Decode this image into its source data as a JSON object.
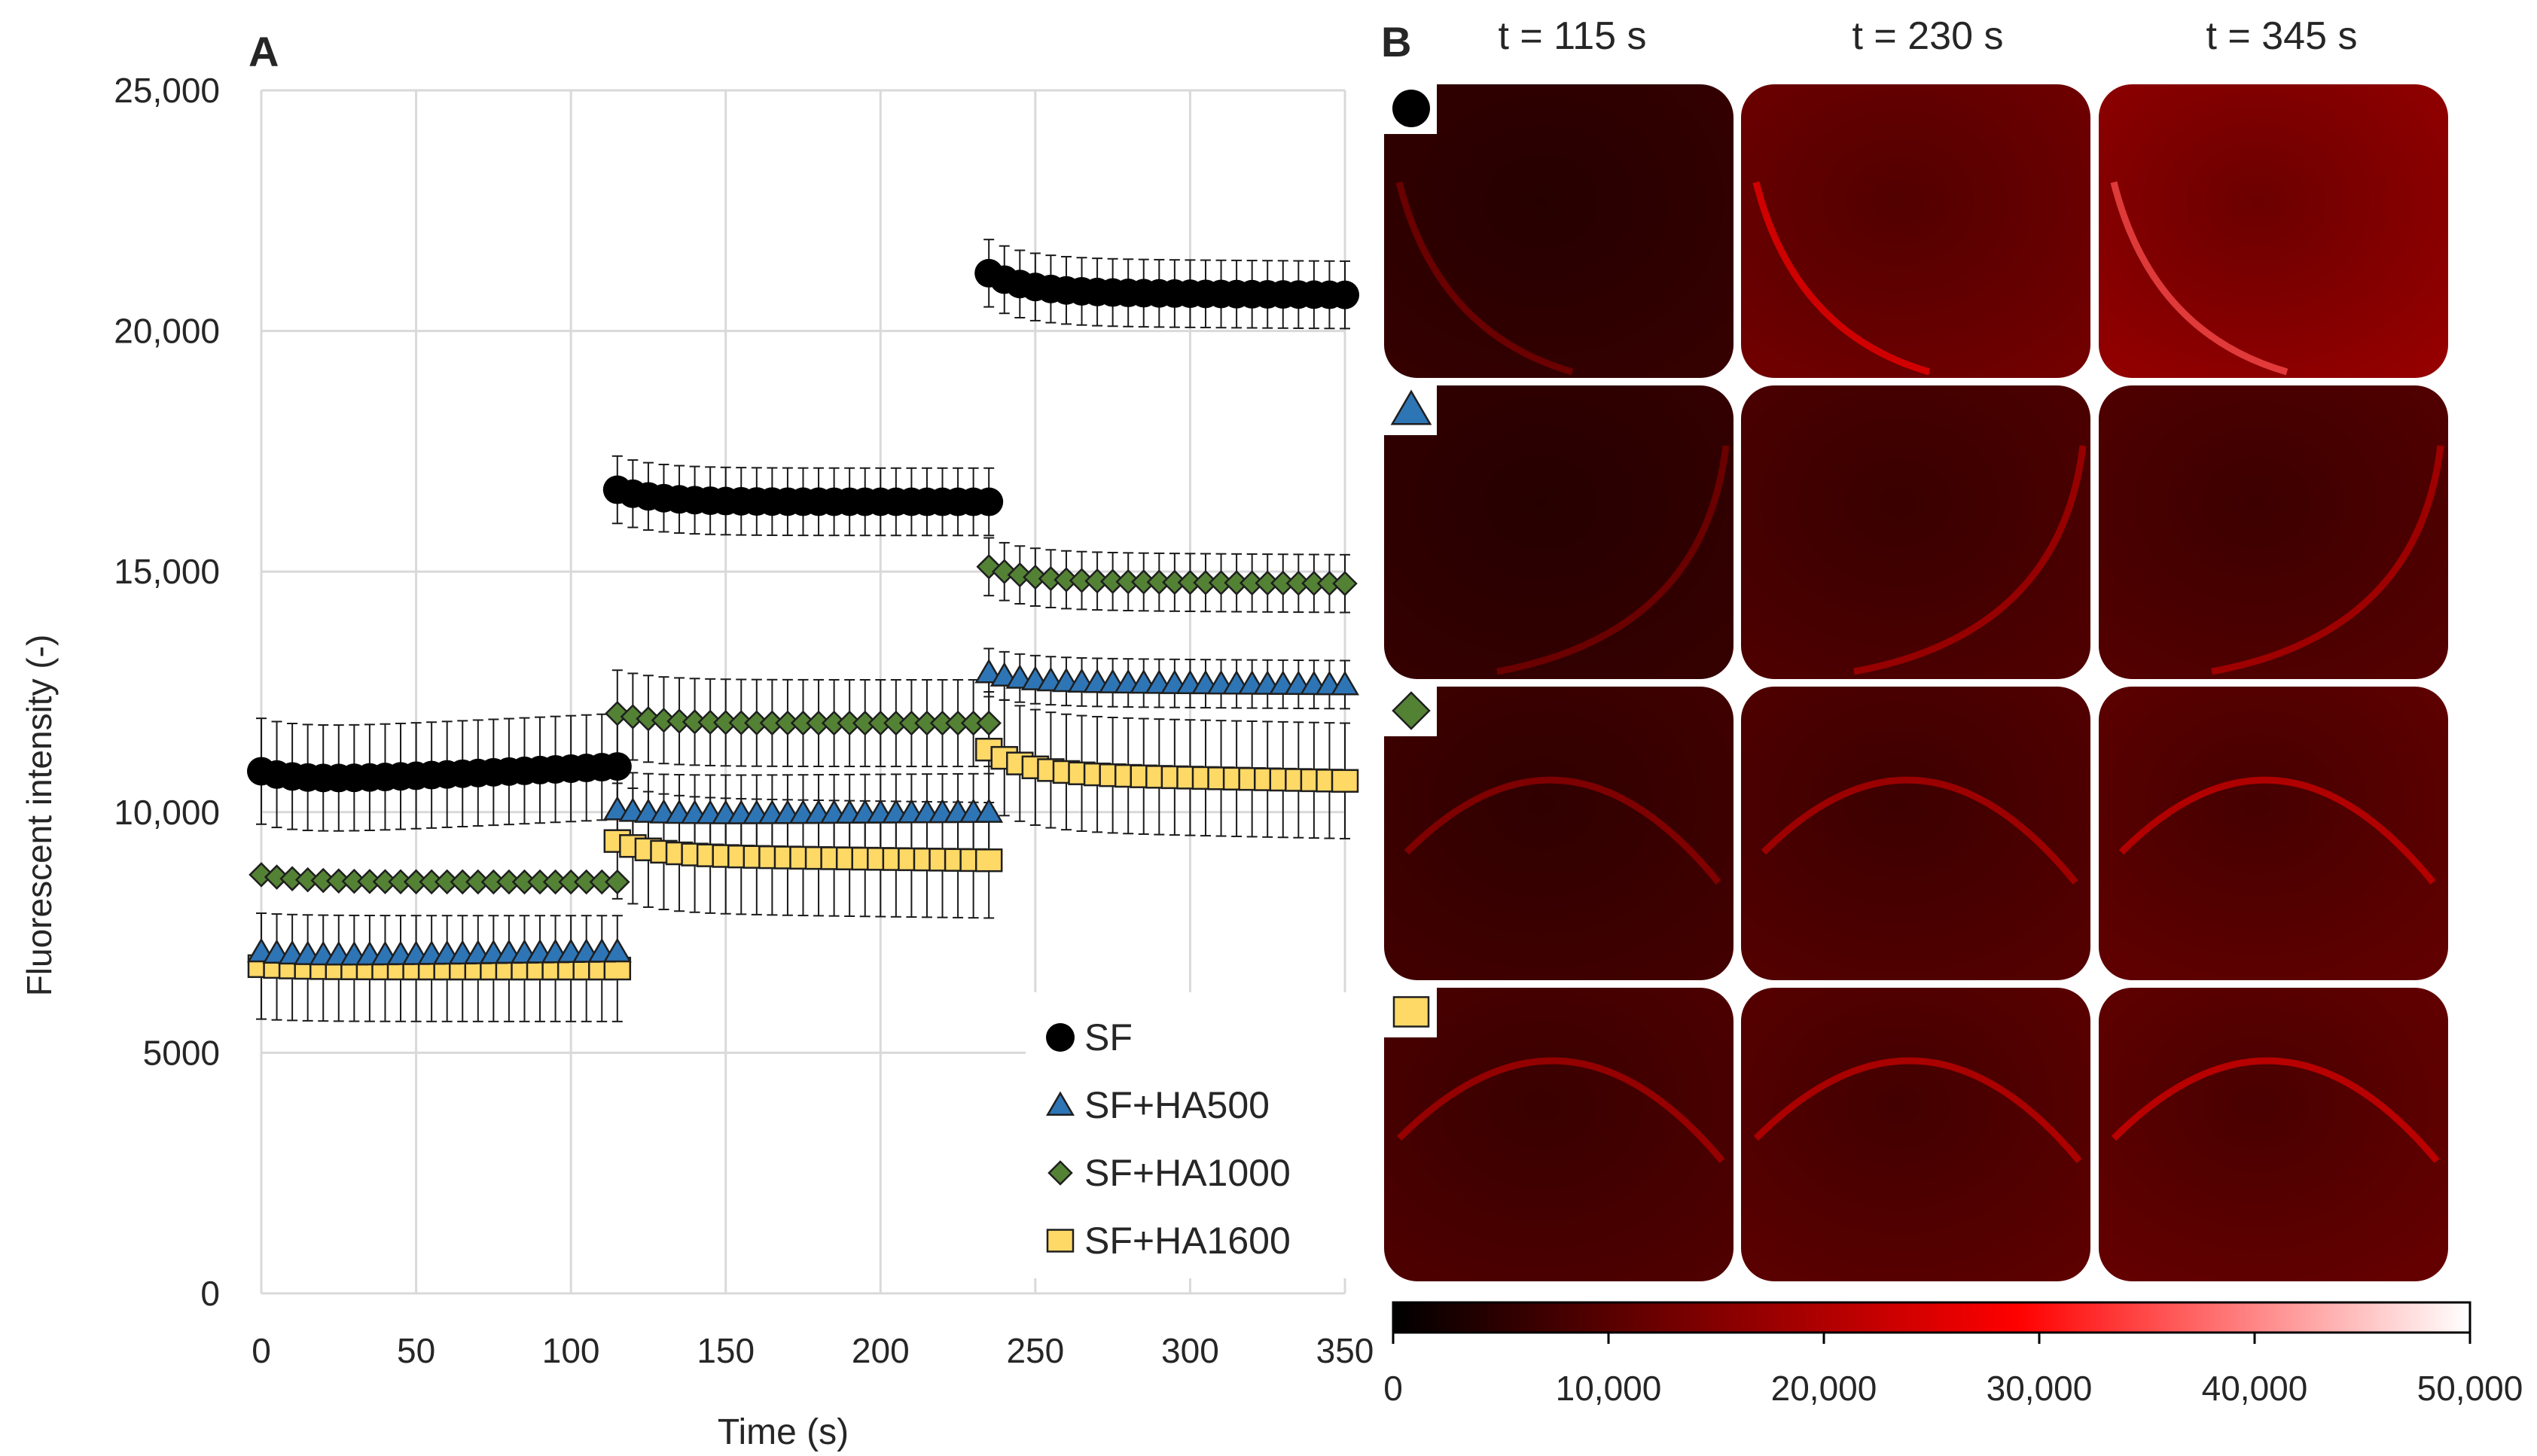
{
  "panel_a": {
    "label": "A",
    "chart_data": {
      "type": "scatter",
      "title": "",
      "xlabel": "Time (s)",
      "ylabel": "Fluorescent intensity (-)",
      "xlim": [
        0,
        350
      ],
      "ylim": [
        0,
        25000
      ],
      "xticks": [
        0,
        50,
        100,
        150,
        200,
        250,
        300,
        350
      ],
      "xtick_labels": [
        "0",
        "50",
        "100",
        "150",
        "200",
        "250",
        "300",
        "350"
      ],
      "yticks": [
        0,
        5000,
        10000,
        15000,
        20000,
        25000
      ],
      "ytick_labels": [
        "0",
        "5000",
        "10,000",
        "15,000",
        "20,000",
        "25,000"
      ],
      "grid": true,
      "legend_position": "bottom-right",
      "segments": [
        {
          "x_start": 0,
          "x_end": 115,
          "step": 5
        },
        {
          "x_start": 115,
          "x_end": 235,
          "step": 5
        },
        {
          "x_start": 235,
          "x_end": 350,
          "step": 5
        }
      ],
      "series": [
        {
          "name": "SF",
          "marker": "circle",
          "color": "#000000",
          "segments": [
            {
              "start": 10850,
              "settle": 10600,
              "end": 10950,
              "error": 1100
            },
            {
              "start": 16700,
              "settle": 16450,
              "end": 16450,
              "error": 700
            },
            {
              "start": 21200,
              "settle": 20800,
              "end": 20750,
              "error": 700
            }
          ]
        },
        {
          "name": "SF+HA500",
          "marker": "triangle",
          "color": "#2e75b6",
          "segments": [
            {
              "start": 7100,
              "settle": 7000,
              "end": 7100,
              "error": 0
            },
            {
              "start": 10050,
              "settle": 9950,
              "end": 10000,
              "error": 800
            },
            {
              "start": 12900,
              "settle": 12700,
              "end": 12650,
              "error": 500
            }
          ]
        },
        {
          "name": "SF+HA1000",
          "marker": "diamond",
          "color": "#548235",
          "segments": [
            {
              "start": 8700,
              "settle": 8550,
              "end": 8550,
              "error": 0
            },
            {
              "start": 12050,
              "settle": 11850,
              "end": 11850,
              "error": 900
            },
            {
              "start": 15100,
              "settle": 14800,
              "end": 14750,
              "error": 600
            }
          ]
        },
        {
          "name": "SF+HA1600",
          "marker": "square",
          "color": "#ffd966",
          "segments": [
            {
              "start": 6800,
              "settle": 6750,
              "end": 6750,
              "error": 1100
            },
            {
              "start": 9400,
              "settle": 9100,
              "end": 9000,
              "error": 1200
            },
            {
              "start": 11300,
              "settle": 10800,
              "end": 10650,
              "error": 1200
            }
          ]
        }
      ]
    }
  },
  "panel_b": {
    "label": "B",
    "column_headers": [
      "t = 115 s",
      "t = 230 s",
      "t = 345 s"
    ],
    "row_markers": [
      {
        "marker": "circle",
        "color": "#000000"
      },
      {
        "marker": "triangle",
        "color": "#2e75b6"
      },
      {
        "marker": "diamond",
        "color": "#548235"
      },
      {
        "marker": "square",
        "color": "#ffd966"
      }
    ],
    "image_intensity": [
      [
        6000,
        13000,
        17000
      ],
      [
        6000,
        9000,
        9500
      ],
      [
        7500,
        9500,
        11000
      ],
      [
        9000,
        10500,
        11500
      ]
    ],
    "colorbar": {
      "min": 0,
      "max": 50000,
      "ticks": [
        0,
        10000,
        20000,
        30000,
        40000,
        50000
      ],
      "tick_labels": [
        "0",
        "10,000",
        "20,000",
        "30,000",
        "40,000",
        "50,000"
      ],
      "colors": [
        "#000000",
        "#ff0000",
        "#ffffff"
      ]
    }
  }
}
